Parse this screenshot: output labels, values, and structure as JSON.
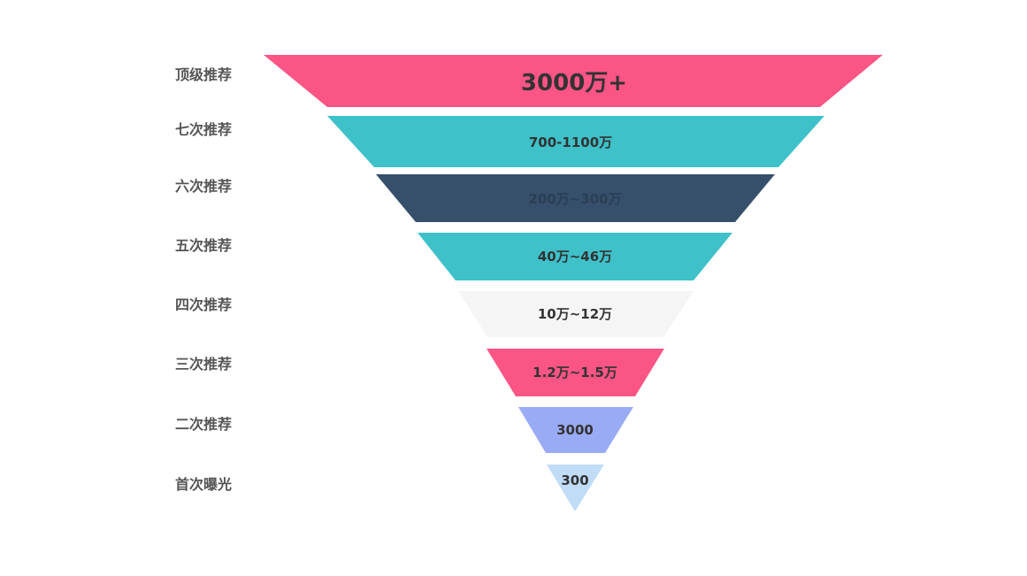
{
  "funnel": {
    "levels": [
      {
        "label": "顶级推荐",
        "value_text": "3000万+",
        "color": "#fb5586"
      },
      {
        "label": "七次推荐",
        "value_text": "700-1100万",
        "color": "#3ec1c9"
      },
      {
        "label": "六次推荐",
        "value_text": "200万~300万",
        "color": "#364f6b"
      },
      {
        "label": "五次推荐",
        "value_text": "40万~46万",
        "color": "#3ec1c9"
      },
      {
        "label": "四次推荐",
        "value_text": "10万~12万",
        "color": "#f5f5f5"
      },
      {
        "label": "三次推荐",
        "value_text": "1.2万~1.5万",
        "color": "#fb5586"
      },
      {
        "label": "二次推荐",
        "value_text": "3000",
        "color": "#9aabf5"
      },
      {
        "label": "首次曝光",
        "value_text": "300",
        "color": "#c0dcf7"
      }
    ]
  }
}
